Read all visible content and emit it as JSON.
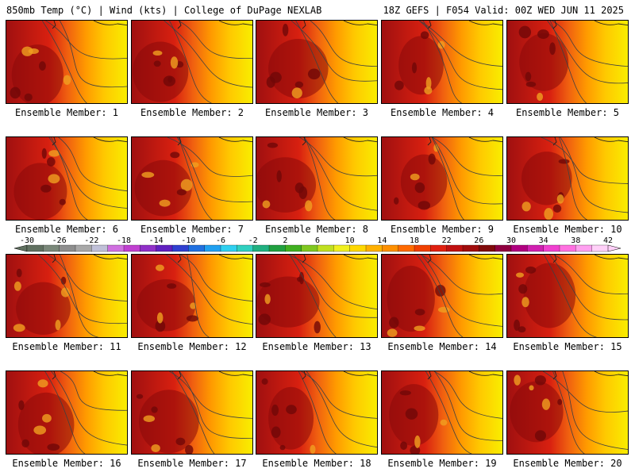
{
  "header": {
    "left": "850mb Temp (°C) | Wind (kts) | College of DuPage NEXLAB",
    "right": "18Z GEFS | F054 Valid: 00Z WED JUN 11 2025"
  },
  "colorbar": {
    "labels": [
      "-30",
      "-26",
      "-22",
      "-18",
      "-14",
      "-10",
      "-6",
      "-2",
      "2",
      "6",
      "10",
      "14",
      "18",
      "22",
      "26",
      "30",
      "34",
      "38",
      "42"
    ],
    "colors": [
      "#607060",
      "#7a887a",
      "#8e8e8e",
      "#a8a8a8",
      "#c0c0d8",
      "#d070e0",
      "#c040d0",
      "#9030c8",
      "#6020c0",
      "#3040d0",
      "#2070e0",
      "#20a0f0",
      "#30d0f0",
      "#30d0c0",
      "#20b080",
      "#20a040",
      "#40b020",
      "#80c820",
      "#c0e020",
      "#f0f020",
      "#ffd800",
      "#ffb000",
      "#ff9000",
      "#ff6a00",
      "#f04000",
      "#e02010",
      "#c01010",
      "#a00c0c",
      "#800a0a",
      "#900040",
      "#b00080",
      "#d020b0",
      "#f040d0",
      "#ff70e0",
      "#ffa0f0",
      "#ffd0f8"
    ]
  },
  "members": [
    {
      "caption": "Ensemble Member: 1"
    },
    {
      "caption": "Ensemble Member: 2"
    },
    {
      "caption": "Ensemble Member: 3"
    },
    {
      "caption": "Ensemble Member: 4"
    },
    {
      "caption": "Ensemble Member: 5"
    },
    {
      "caption": "Ensemble Member: 6"
    },
    {
      "caption": "Ensemble Member: 7"
    },
    {
      "caption": "Ensemble Member: 8"
    },
    {
      "caption": "Ensemble Member: 9"
    },
    {
      "caption": "Ensemble Member: 10"
    },
    {
      "caption": "Ensemble Member: 11"
    },
    {
      "caption": "Ensemble Member: 12"
    },
    {
      "caption": "Ensemble Member: 13"
    },
    {
      "caption": "Ensemble Member: 14"
    },
    {
      "caption": "Ensemble Member: 15"
    },
    {
      "caption": "Ensemble Member: 16"
    },
    {
      "caption": "Ensemble Member: 17"
    },
    {
      "caption": "Ensemble Member: 18"
    },
    {
      "caption": "Ensemble Member: 19"
    },
    {
      "caption": "Ensemble Member: 20"
    }
  ],
  "palette": {
    "hot": "#a01010",
    "warm": "#d82010",
    "mid": "#f06010",
    "orange": "#ff9a00",
    "amber": "#ffc800",
    "yellow": "#f8f000",
    "contour": "#404040"
  }
}
